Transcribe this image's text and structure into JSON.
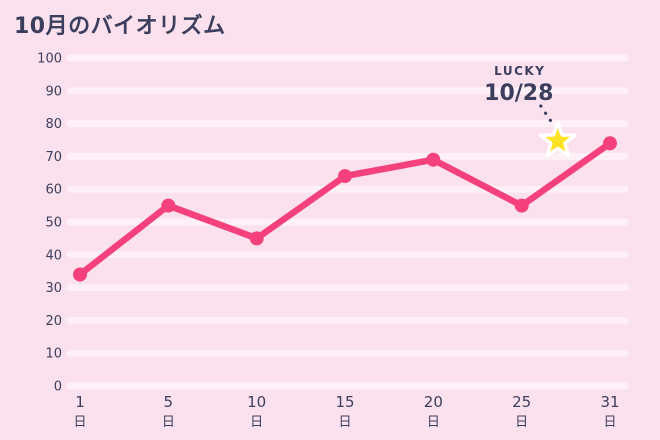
{
  "header": {
    "title": "10月のバイオリズム"
  },
  "colors": {
    "background": "#FBE1ED",
    "gridline": "#FEF0F6",
    "line": "#F4417C",
    "point": "#F4417C",
    "text": "#3B3F5D",
    "star_fill": "#FFE226",
    "star_stroke": "#FFFFFF"
  },
  "chart_data": {
    "type": "line",
    "title": "10月のバイオリズム",
    "xlabel": "",
    "ylabel": "",
    "days": [
      1,
      5,
      10,
      15,
      20,
      25,
      31
    ],
    "categories": [
      "1",
      "5",
      "10",
      "15",
      "20",
      "25",
      "31"
    ],
    "category_suffix": "日",
    "values": [
      34,
      55,
      45,
      64,
      69,
      55,
      74
    ],
    "ylim": [
      0,
      100
    ],
    "ytick_step": 10,
    "grid": "horizontal-bands",
    "legend": "none",
    "annotation": {
      "label": "LUCKY",
      "date": "10/28",
      "day": 28,
      "value": 75,
      "marker": "star"
    }
  }
}
